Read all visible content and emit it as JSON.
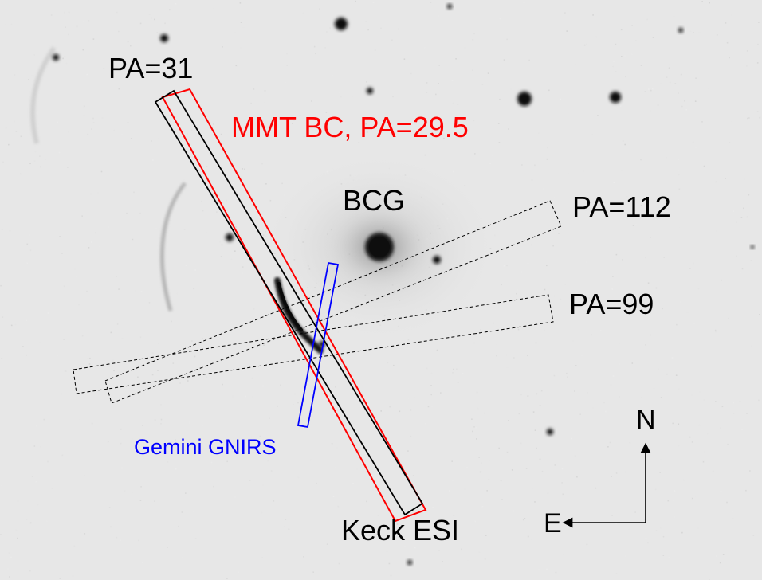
{
  "colors": {
    "sky_background": "#e7e7e7",
    "source": "#141414",
    "slit_black": "#000000",
    "slit_red": "#ff0000",
    "slit_blue": "#0000ff",
    "label_black": "#000000",
    "label_red": "#ff0000",
    "label_blue": "#0000ff"
  },
  "labels": {
    "pa31": "PA=31",
    "mmt": "MMT BC, PA=29.5",
    "bcg": "BCG",
    "pa112": "PA=112",
    "pa99": "PA=99",
    "gnirs": "Gemini GNIRS",
    "keck": "Keck ESI",
    "north": "N",
    "east": "E"
  },
  "icons": {
    "north_arrow": "arrow-up-icon",
    "east_arrow": "arrow-left-icon"
  }
}
